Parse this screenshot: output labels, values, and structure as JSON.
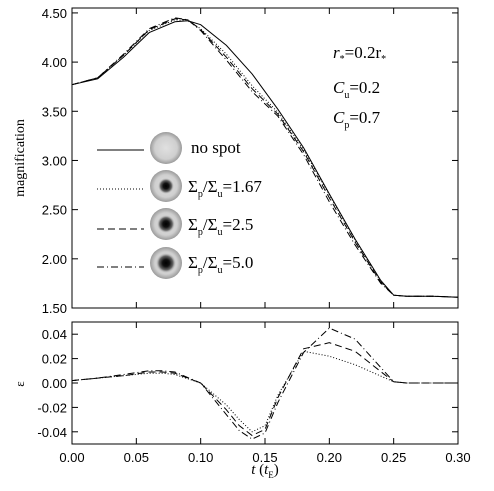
{
  "chart_data": [
    {
      "type": "line",
      "panel": "top",
      "ylabel": "magnification",
      "xlim": [
        0.0,
        0.3
      ],
      "ylim": [
        1.5,
        4.55
      ],
      "yticks": [
        "1.50",
        "2.00",
        "2.50",
        "3.00",
        "3.50",
        "4.00",
        "4.50"
      ],
      "grid": false,
      "params": {
        "r_line": {
          "left": "r",
          "right": "=0.2r"
        },
        "cu_line": {
          "left": "C",
          "sub": "u",
          "right": "=0.2"
        },
        "cp_line": {
          "left": "C",
          "sub": "p",
          "right": "=0.7"
        }
      },
      "legend": {
        "placement": "center-left",
        "entries": [
          {
            "label": "no spot",
            "style": "solid",
            "spot": false
          },
          {
            "label": "Σp/Σu=1.67",
            "style": "dotted",
            "spot": true,
            "sigma_left": "Σ",
            "sub1": "p",
            "slash": "/Σ",
            "sub2": "u",
            "value": "=1.67"
          },
          {
            "label": "Σp/Σu=2.5",
            "style": "dashed",
            "spot": true,
            "sigma_left": "Σ",
            "sub1": "p",
            "slash": "/Σ",
            "sub2": "u",
            "value": "=2.5"
          },
          {
            "label": "Σp/Σu=5.0",
            "style": "dashdot",
            "spot": true,
            "sigma_left": "Σ",
            "sub1": "p",
            "slash": "/Σ",
            "sub2": "u",
            "value": "=5.0"
          }
        ]
      },
      "series": [
        {
          "name": "no spot",
          "style": "solid",
          "x": [
            0.0,
            0.02,
            0.04,
            0.06,
            0.08,
            0.09,
            0.1,
            0.12,
            0.14,
            0.16,
            0.18,
            0.2,
            0.22,
            0.24,
            0.25,
            0.26,
            0.28,
            0.3
          ],
          "y": [
            3.77,
            3.83,
            4.05,
            4.3,
            4.41,
            4.42,
            4.38,
            4.17,
            3.88,
            3.52,
            3.13,
            2.66,
            2.2,
            1.78,
            1.63,
            1.62,
            1.62,
            1.61
          ]
        },
        {
          "name": "Σp/Σu=1.67",
          "style": "dotted",
          "x": [
            0.0,
            0.02,
            0.04,
            0.06,
            0.08,
            0.09,
            0.1,
            0.12,
            0.14,
            0.16,
            0.18,
            0.2,
            0.22,
            0.24,
            0.25,
            0.26,
            0.28,
            0.3
          ],
          "y": [
            3.77,
            3.84,
            4.07,
            4.32,
            4.43,
            4.42,
            4.34,
            4.08,
            3.76,
            3.49,
            3.11,
            2.65,
            2.19,
            1.77,
            1.63,
            1.62,
            1.62,
            1.61
          ]
        },
        {
          "name": "Σp/Σu=2.5",
          "style": "dashed",
          "x": [
            0.0,
            0.02,
            0.04,
            0.06,
            0.08,
            0.09,
            0.1,
            0.12,
            0.14,
            0.16,
            0.18,
            0.2,
            0.22,
            0.24,
            0.25,
            0.26,
            0.28,
            0.3
          ],
          "y": [
            3.77,
            3.84,
            4.07,
            4.33,
            4.44,
            4.43,
            4.33,
            4.05,
            3.73,
            3.47,
            3.09,
            2.62,
            2.17,
            1.76,
            1.63,
            1.62,
            1.62,
            1.61
          ]
        },
        {
          "name": "Σp/Σu=5.0",
          "style": "dashdot",
          "x": [
            0.0,
            0.02,
            0.04,
            0.06,
            0.08,
            0.09,
            0.1,
            0.12,
            0.14,
            0.16,
            0.18,
            0.2,
            0.22,
            0.24,
            0.25,
            0.26,
            0.28,
            0.3
          ],
          "y": [
            3.77,
            3.84,
            4.08,
            4.34,
            4.45,
            4.43,
            4.32,
            4.02,
            3.7,
            3.45,
            3.06,
            2.58,
            2.14,
            1.75,
            1.63,
            1.62,
            1.62,
            1.61
          ]
        }
      ]
    },
    {
      "type": "line",
      "panel": "bottom",
      "ylabel": "ε",
      "xlabel": {
        "t": "t",
        "open": " (",
        "te": "t",
        "sub": "E",
        "close": ")"
      },
      "xlim": [
        0.0,
        0.3
      ],
      "ylim": [
        -0.05,
        0.05
      ],
      "xticks": [
        "0.00",
        "0.05",
        "0.10",
        "0.15",
        "0.20",
        "0.25",
        "0.30"
      ],
      "yticks": [
        "-0.04",
        "-0.02",
        "0.00",
        "0.02",
        "0.04"
      ],
      "grid": false,
      "series": [
        {
          "name": "Σp/Σu=1.67",
          "style": "dotted",
          "x": [
            0.0,
            0.02,
            0.04,
            0.06,
            0.07,
            0.08,
            0.1,
            0.12,
            0.13,
            0.14,
            0.15,
            0.16,
            0.18,
            0.2,
            0.22,
            0.25,
            0.26,
            0.3
          ],
          "y": [
            0.002,
            0.004,
            0.006,
            0.008,
            0.008,
            0.007,
            0.0,
            -0.018,
            -0.03,
            -0.04,
            -0.035,
            -0.01,
            0.026,
            0.022,
            0.015,
            0.001,
            0.0,
            0.0
          ]
        },
        {
          "name": "Σp/Σu=2.5",
          "style": "dashed",
          "x": [
            0.0,
            0.02,
            0.04,
            0.06,
            0.07,
            0.08,
            0.1,
            0.12,
            0.13,
            0.14,
            0.15,
            0.16,
            0.18,
            0.2,
            0.22,
            0.25,
            0.26,
            0.3
          ],
          "y": [
            0.002,
            0.004,
            0.006,
            0.009,
            0.009,
            0.008,
            0.0,
            -0.022,
            -0.035,
            -0.043,
            -0.038,
            -0.012,
            0.028,
            0.033,
            0.026,
            0.001,
            0.0,
            0.0
          ]
        },
        {
          "name": "Σp/Σu=5.0",
          "style": "dashdot",
          "x": [
            0.0,
            0.02,
            0.04,
            0.06,
            0.07,
            0.08,
            0.1,
            0.12,
            0.13,
            0.14,
            0.15,
            0.16,
            0.18,
            0.2,
            0.22,
            0.25,
            0.26,
            0.3
          ],
          "y": [
            0.002,
            0.004,
            0.007,
            0.01,
            0.01,
            0.009,
            0.0,
            -0.026,
            -0.039,
            -0.046,
            -0.041,
            -0.016,
            0.025,
            0.045,
            0.036,
            0.001,
            0.0,
            0.0
          ]
        }
      ]
    }
  ]
}
